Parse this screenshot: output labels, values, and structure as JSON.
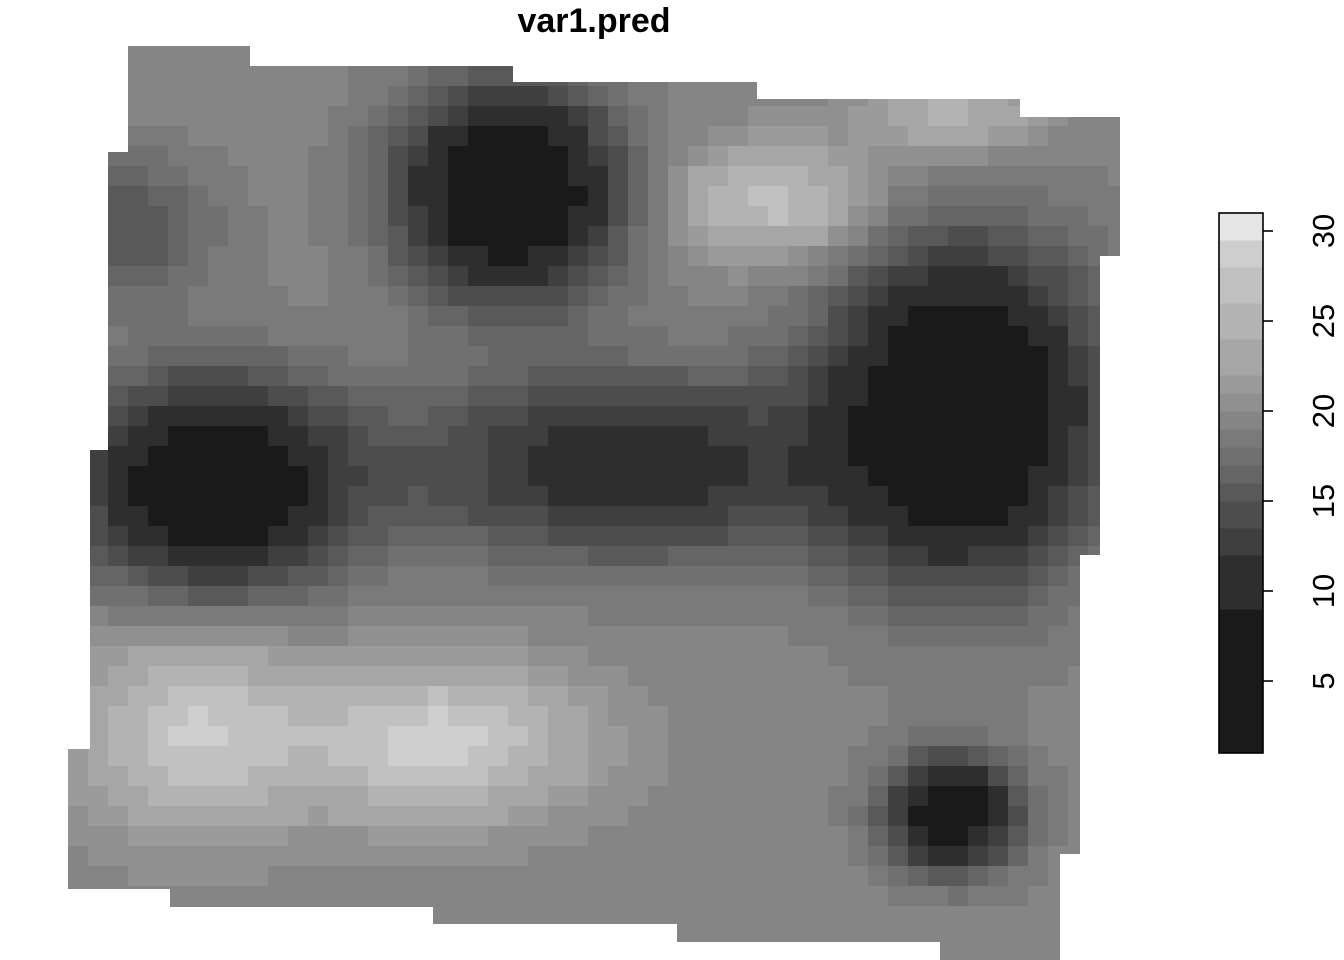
{
  "chart_data": {
    "type": "heatmap",
    "title": "var1.pred",
    "palette": [
      "#1a1a1a",
      "#2e2e2e",
      "#3f3f3f",
      "#4d4d4d",
      "#595959",
      "#656565",
      "#707070",
      "#7a7a7a",
      "#858585",
      "#909090",
      "#9b9b9b",
      "#a6a6a6",
      "#b3b3b3",
      "#c0c0c0",
      "#cecece",
      "#e5e5e5"
    ],
    "breaks": [
      1,
      9,
      12,
      13.5,
      15,
      16,
      17,
      18,
      19,
      20,
      21,
      22,
      24,
      26,
      28,
      29.5,
      31
    ],
    "legend": {
      "range": [
        1,
        31
      ],
      "ticks": [
        5,
        10,
        15,
        20,
        25,
        30
      ],
      "tick_labels": [
        "5",
        "10",
        "15",
        "20",
        "25",
        "30"
      ],
      "placement": "right"
    },
    "field": {
      "background": 19.5,
      "features": [
        {
          "kind": "high",
          "peak": 29,
          "cx": 0.35,
          "cy": 0.76,
          "rx": 0.13,
          "ry": 0.08
        },
        {
          "kind": "low",
          "peak": 4,
          "cx": 0.14,
          "cy": 0.48,
          "rx": 0.12,
          "ry": 0.11
        },
        {
          "kind": "low",
          "peak": 3,
          "cx": 0.42,
          "cy": 0.16,
          "rx": 0.1,
          "ry": 0.11
        },
        {
          "kind": "low",
          "peak": 2,
          "cx": 0.85,
          "cy": 0.4,
          "rx": 0.12,
          "ry": 0.17
        },
        {
          "kind": "low",
          "peak": 5,
          "cx": 0.84,
          "cy": 0.84,
          "rx": 0.06,
          "ry": 0.06
        },
        {
          "kind": "low",
          "peak": 10,
          "cx": 0.53,
          "cy": 0.46,
          "rx": 0.2,
          "ry": 0.1
        },
        {
          "kind": "high",
          "peak": 28,
          "cx": 0.12,
          "cy": 0.75,
          "rx": 0.1,
          "ry": 0.1
        },
        {
          "kind": "high",
          "peak": 27,
          "cx": 0.67,
          "cy": 0.17,
          "rx": 0.09,
          "ry": 0.06
        },
        {
          "kind": "high",
          "peak": 25,
          "cx": 0.84,
          "cy": 0.07,
          "rx": 0.08,
          "ry": 0.05
        },
        {
          "kind": "low",
          "peak": 15,
          "cx": 0.06,
          "cy": 0.2,
          "rx": 0.08,
          "ry": 0.08
        }
      ]
    }
  }
}
